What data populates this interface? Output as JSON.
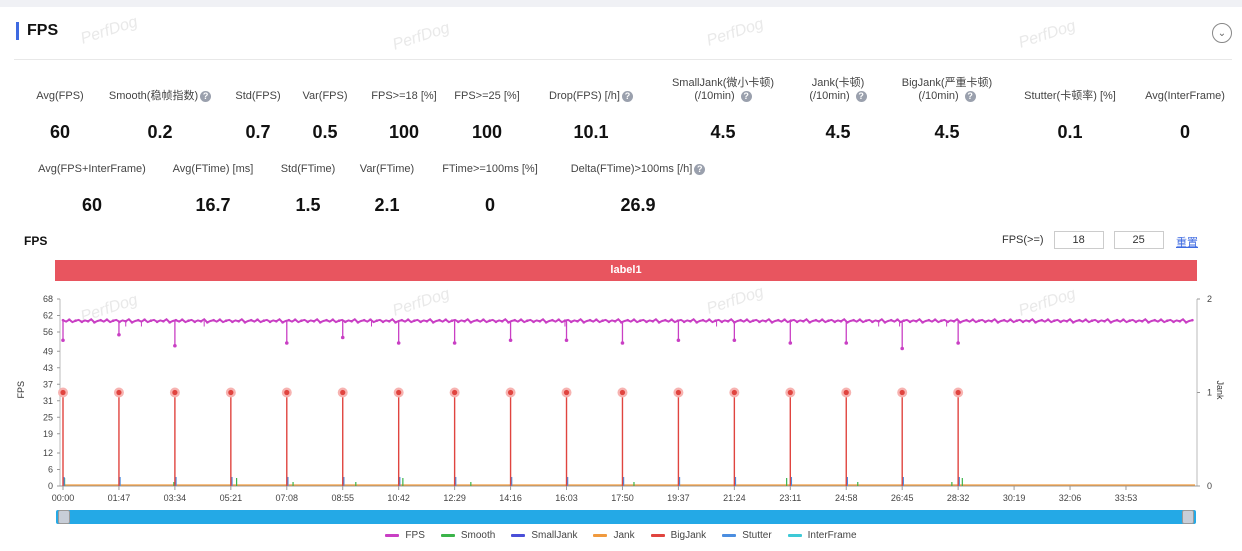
{
  "section": {
    "title": "FPS"
  },
  "watermark": "PerfDog",
  "stats_row1": [
    {
      "label": "Avg(FPS)",
      "value": "60",
      "help": false
    },
    {
      "label": "Smooth(稳帧指数)",
      "value": "0.2",
      "help": true
    },
    {
      "label": "Std(FPS)",
      "value": "0.7",
      "help": false
    },
    {
      "label": "Var(FPS)",
      "value": "0.5",
      "help": false
    },
    {
      "label": "FPS>=18 [%]",
      "value": "100",
      "help": false
    },
    {
      "label": "FPS>=25 [%]",
      "value": "100",
      "help": false
    },
    {
      "label": "Drop(FPS) [/h]",
      "value": "10.1",
      "help": true
    },
    {
      "label": "SmallJank(微小卡顿)",
      "label2": "(/10min)",
      "value": "4.5",
      "help": true
    },
    {
      "label": "Jank(卡顿)",
      "label2": "(/10min)",
      "value": "4.5",
      "help": true
    },
    {
      "label": "BigJank(严重卡顿)",
      "label2": "(/10min)",
      "value": "4.5",
      "help": true
    },
    {
      "label": "Stutter(卡顿率) [%]",
      "value": "0.1",
      "help": false
    },
    {
      "label": "Avg(InterFrame)",
      "value": "0",
      "help": false
    }
  ],
  "stats_row2": [
    {
      "label": "Avg(FPS+InterFrame)",
      "value": "60",
      "help": false
    },
    {
      "label": "Avg(FTime) [ms]",
      "value": "16.7",
      "help": false
    },
    {
      "label": "Std(FTime)",
      "value": "1.5",
      "help": false
    },
    {
      "label": "Var(FTime)",
      "value": "2.1",
      "help": false
    },
    {
      "label": "FTime>=100ms [%]",
      "value": "0",
      "help": false
    },
    {
      "label": "Delta(FTime)>100ms [/h]",
      "value": "26.9",
      "help": true
    }
  ],
  "chart_header": {
    "title": "FPS",
    "threshold_label": "FPS(>=)",
    "threshold_1": "18",
    "threshold_2": "25",
    "reset_label": "重置"
  },
  "label_bar": "label1",
  "chart_data": {
    "type": "line",
    "y_left": {
      "label": "FPS",
      "ticks": [
        0,
        6,
        12,
        19,
        25,
        31,
        37,
        43,
        49,
        56,
        62,
        68
      ],
      "range": [
        0,
        68
      ]
    },
    "y_right": {
      "label": "Jank",
      "ticks": [
        0,
        1,
        2
      ],
      "range": [
        0,
        2
      ]
    },
    "x_ticks": [
      "00:00",
      "01:47",
      "03:34",
      "05:21",
      "07:08",
      "08:55",
      "10:42",
      "12:29",
      "14:16",
      "16:03",
      "17:50",
      "19:37",
      "21:24",
      "23:11",
      "24:58",
      "26:45",
      "28:32",
      "30:19",
      "32:06",
      "33:53"
    ],
    "x_range_seconds": [
      0,
      2165
    ],
    "fps_baseline": 60,
    "fps_dips": [
      {
        "t": 0,
        "fps": 53
      },
      {
        "t": 107,
        "fps": 55
      },
      {
        "t": 214,
        "fps": 51
      },
      {
        "t": 428,
        "fps": 52
      },
      {
        "t": 535,
        "fps": 54
      },
      {
        "t": 642,
        "fps": 52
      },
      {
        "t": 749,
        "fps": 52
      },
      {
        "t": 856,
        "fps": 53
      },
      {
        "t": 963,
        "fps": 53
      },
      {
        "t": 1070,
        "fps": 52
      },
      {
        "t": 1177,
        "fps": 53
      },
      {
        "t": 1284,
        "fps": 53
      },
      {
        "t": 1391,
        "fps": 52
      },
      {
        "t": 1498,
        "fps": 52
      },
      {
        "t": 1605,
        "fps": 50
      },
      {
        "t": 1712,
        "fps": 52
      }
    ],
    "bigjank_times": [
      0,
      107,
      214,
      321,
      428,
      535,
      642,
      749,
      856,
      963,
      1070,
      1177,
      1284,
      1391,
      1498,
      1605,
      1712
    ],
    "legend": [
      "FPS",
      "Smooth",
      "SmallJank",
      "Jank",
      "BigJank",
      "Stutter",
      "InterFrame"
    ],
    "colors": {
      "FPS": "#c93fc4",
      "Smooth": "#3bb44a",
      "SmallJank": "#4a4fd8",
      "Jank": "#f09a3e",
      "BigJank": "#e0443f",
      "Stutter": "#4b8ee0",
      "InterFrame": "#3ec9d6"
    }
  }
}
